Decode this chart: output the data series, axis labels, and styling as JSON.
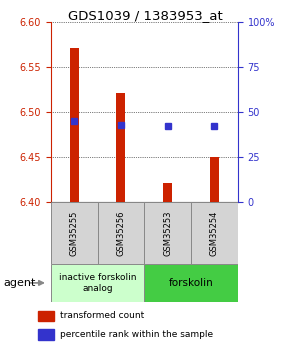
{
  "title": "GDS1039 / 1383953_at",
  "samples": [
    "GSM35255",
    "GSM35256",
    "GSM35253",
    "GSM35254"
  ],
  "bar_bottoms": [
    6.4,
    6.4,
    6.4,
    6.4
  ],
  "bar_tops": [
    6.571,
    6.521,
    6.421,
    6.45
  ],
  "blue_y": [
    6.49,
    6.486,
    6.484,
    6.484
  ],
  "ylim": [
    6.4,
    6.6
  ],
  "yticks_left": [
    6.4,
    6.45,
    6.5,
    6.55,
    6.6
  ],
  "yticks_right_vals": [
    0,
    25,
    50,
    75,
    100
  ],
  "yticks_right_labels": [
    "0",
    "25",
    "50",
    "75",
    "100%"
  ],
  "bar_color": "#cc2200",
  "blue_color": "#3333cc",
  "group1_label": "inactive forskolin\nanalog",
  "group2_label": "forskolin",
  "group1_indices": [
    0,
    1
  ],
  "group2_indices": [
    2,
    3
  ],
  "group1_color": "#ccffcc",
  "group2_color": "#44cc44",
  "agent_label": "agent",
  "legend_bar_label": "transformed count",
  "legend_blue_label": "percentile rank within the sample",
  "title_fontsize": 9.5,
  "tick_fontsize": 7,
  "sample_fontsize": 6,
  "group_fontsize": 6.5,
  "legend_fontsize": 6.5,
  "bar_width": 0.55
}
